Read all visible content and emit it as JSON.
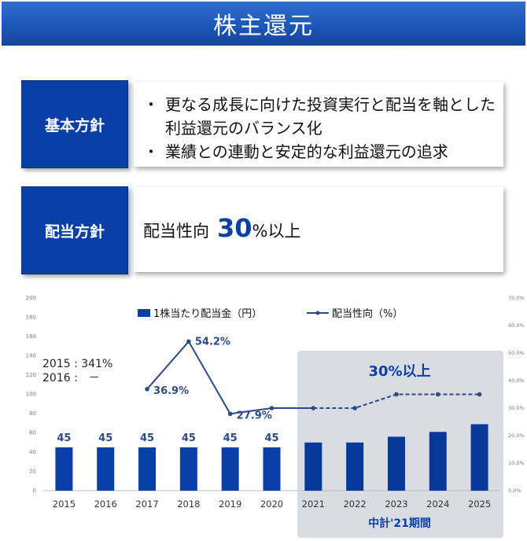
{
  "title": "株主還元",
  "basic_policy": {
    "label": "基本方針",
    "bullets": [
      "更なる成長に向けた投資実行と配当を軸とした利益還元のバランス化",
      "業績との連動と安定的な利益還元の追求"
    ]
  },
  "dividend_policy": {
    "label": "配当方針",
    "prefix": "配当性向",
    "number": "30",
    "suffix": "%以上"
  },
  "chart_data": {
    "type": "bar",
    "categories": [
      "2015",
      "2016",
      "2017",
      "2018",
      "2019",
      "2020",
      "2021",
      "2022",
      "2023",
      "2024",
      "2025"
    ],
    "series": [
      {
        "name": "1株当たり配当金（円）",
        "type": "bar",
        "axis": "left",
        "values": [
          45,
          45,
          45,
          45,
          45,
          45,
          50,
          50,
          56,
          61,
          69
        ],
        "labels": [
          "45",
          "45",
          "45",
          "45",
          "45",
          "45",
          "",
          "",
          "",
          "",
          ""
        ]
      },
      {
        "name": "配当性向（%）",
        "type": "line",
        "axis": "right",
        "values": [
          null,
          null,
          36.9,
          54.2,
          27.9,
          30,
          30,
          30,
          35,
          35,
          35
        ],
        "labels": [
          "",
          "",
          "36.9%",
          "54.2%",
          "27.9%",
          "",
          "",
          "",
          "",
          "",
          ""
        ],
        "solid_until": "2021"
      }
    ],
    "ylim_left": [
      0,
      200
    ],
    "yticks_left": [
      "0",
      "20",
      "40",
      "60",
      "80",
      "100",
      "120",
      "140",
      "160",
      "180",
      "200"
    ],
    "ylim_right": [
      0,
      70
    ],
    "yticks_right": [
      "0.0%",
      "10.0%",
      "20.0%",
      "30.0%",
      "40.0%",
      "50.0%",
      "60.0%",
      "70.0%"
    ],
    "note_lines": [
      "2015 : 341%",
      "2016 :　－"
    ],
    "highlight_label": "30%以上",
    "period_label": "中計'21期間",
    "highlight_from": "2021",
    "colors": {
      "bar_actual": "#0a3fa8",
      "bar_plan": "#08399a",
      "line": "#2b4a8a",
      "highlight": "#d9dde3"
    }
  }
}
